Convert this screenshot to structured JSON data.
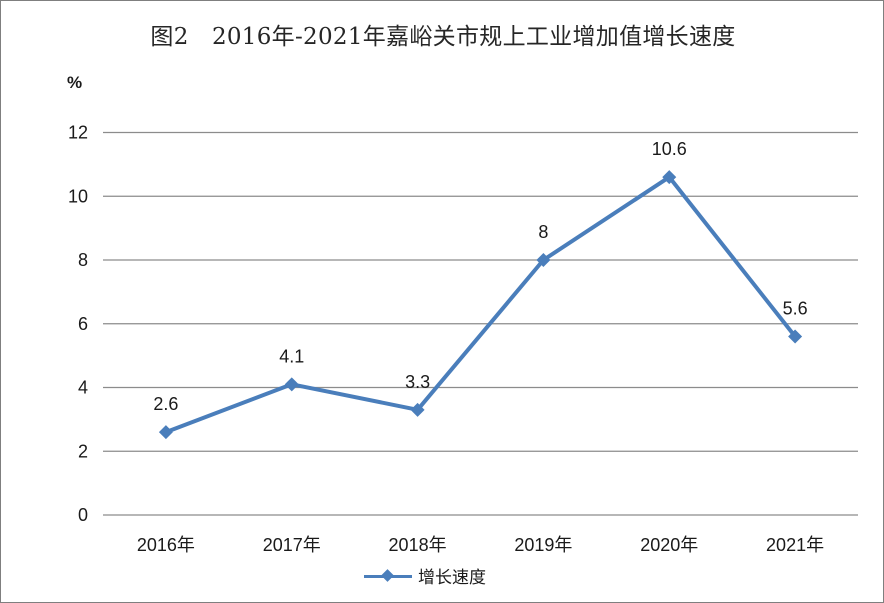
{
  "chart_data": {
    "type": "line",
    "title": "图2　2016年-2021年嘉峪关市规上工业增加值增长速度",
    "ylabel": "%",
    "xlabel": "",
    "categories": [
      "2016年",
      "2017年",
      "2018年",
      "2019年",
      "2020年",
      "2021年"
    ],
    "series": [
      {
        "name": "增长速度",
        "values": [
          2.6,
          4.1,
          3.3,
          8,
          10.6,
          5.6
        ],
        "data_labels": [
          "2.6",
          "4.1",
          "3.3",
          "8",
          "10.6",
          "5.6"
        ],
        "color": "#4a7ebb",
        "marker": "diamond"
      }
    ],
    "ylim": [
      0,
      12
    ],
    "yticks": [
      0,
      2,
      4,
      6,
      8,
      10,
      12
    ],
    "ytick_labels": [
      "0",
      "2",
      "4",
      "6",
      "8",
      "10",
      "12"
    ],
    "grid": true,
    "legend": "bottom-center"
  }
}
